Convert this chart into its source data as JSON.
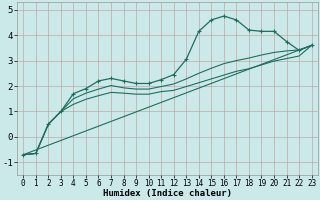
{
  "title": "",
  "xlabel": "Humidex (Indice chaleur)",
  "ylabel": "",
  "bg_color": "#cce9e9",
  "grid_color": "#bb9999",
  "line_color": "#1e6e5e",
  "xlim": [
    -0.5,
    23.5
  ],
  "ylim": [
    -1.5,
    5.3
  ],
  "xticks": [
    0,
    1,
    2,
    3,
    4,
    5,
    6,
    7,
    8,
    9,
    10,
    11,
    12,
    13,
    14,
    15,
    16,
    17,
    18,
    19,
    20,
    21,
    22,
    23
  ],
  "yticks": [
    -1,
    0,
    1,
    2,
    3,
    4,
    5
  ],
  "line1_x": [
    0,
    1,
    2,
    3,
    4,
    5,
    6,
    7,
    8,
    9,
    10,
    11,
    12,
    13,
    14,
    15,
    16,
    17,
    18,
    19,
    20,
    21,
    22,
    23
  ],
  "line1_y": [
    -0.7,
    -0.65,
    0.5,
    1.0,
    1.7,
    1.9,
    2.2,
    2.3,
    2.2,
    2.1,
    2.1,
    2.25,
    2.45,
    3.05,
    4.15,
    4.6,
    4.75,
    4.6,
    4.2,
    4.15,
    4.15,
    3.75,
    3.4,
    3.6
  ],
  "line2_x": [
    0,
    1,
    2,
    3,
    4,
    5,
    6,
    7,
    8,
    9,
    10,
    11,
    12,
    13,
    14,
    15,
    16,
    17,
    18,
    19,
    20,
    21,
    22,
    23
  ],
  "line2_y": [
    -0.7,
    -0.65,
    0.5,
    1.0,
    1.5,
    1.72,
    1.88,
    2.02,
    1.93,
    1.88,
    1.88,
    1.98,
    2.08,
    2.28,
    2.5,
    2.7,
    2.88,
    3.0,
    3.1,
    3.22,
    3.32,
    3.38,
    3.42,
    3.6
  ],
  "line3_x": [
    0,
    1,
    2,
    3,
    4,
    5,
    6,
    7,
    8,
    9,
    10,
    11,
    12,
    13,
    14,
    15,
    16,
    17,
    18,
    19,
    20,
    21,
    22,
    23
  ],
  "line3_y": [
    -0.7,
    -0.65,
    0.5,
    1.0,
    1.28,
    1.48,
    1.62,
    1.75,
    1.72,
    1.68,
    1.68,
    1.78,
    1.83,
    1.98,
    2.13,
    2.28,
    2.43,
    2.58,
    2.68,
    2.83,
    2.98,
    3.08,
    3.18,
    3.6
  ],
  "line4_x": [
    0,
    23
  ],
  "line4_y": [
    -0.7,
    3.6
  ]
}
